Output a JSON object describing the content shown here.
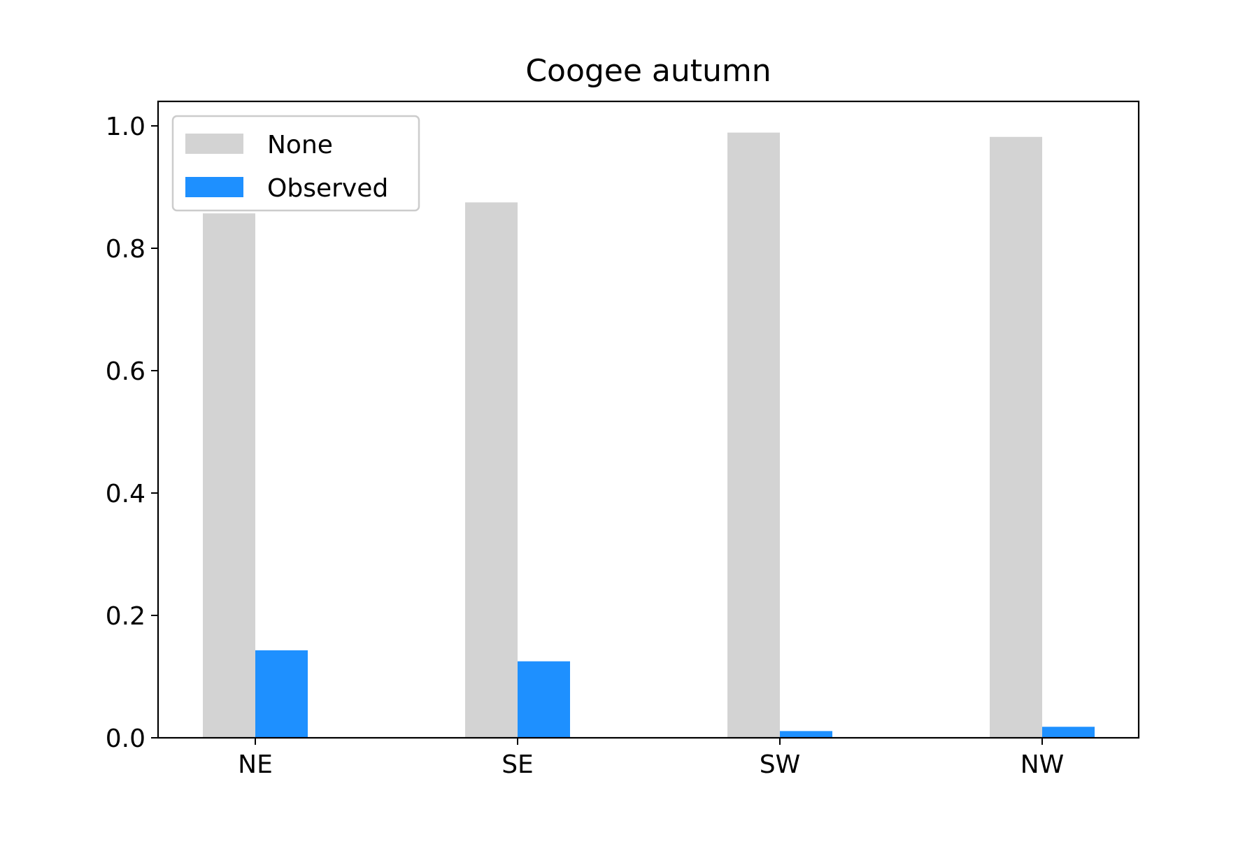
{
  "chart_data": {
    "type": "bar",
    "title": "Coogee autumn",
    "xlabel": "",
    "ylabel": "",
    "categories": [
      "NE",
      "SE",
      "SW",
      "NW"
    ],
    "series": [
      {
        "name": "None",
        "values": [
          0.857,
          0.875,
          0.989,
          0.982
        ]
      },
      {
        "name": "Observed",
        "values": [
          0.143,
          0.125,
          0.011,
          0.018
        ]
      }
    ],
    "ylim": [
      0,
      1.04
    ],
    "yticks": [
      "0.0",
      "0.2",
      "0.4",
      "0.6",
      "0.8",
      "1.0"
    ],
    "ytick_values": [
      0,
      0.2,
      0.4,
      0.6,
      0.8,
      1.0
    ],
    "grid": false,
    "legend_position": "top-left",
    "colors": {
      "None": "#d3d3d3",
      "Observed": "#1e90ff"
    }
  }
}
